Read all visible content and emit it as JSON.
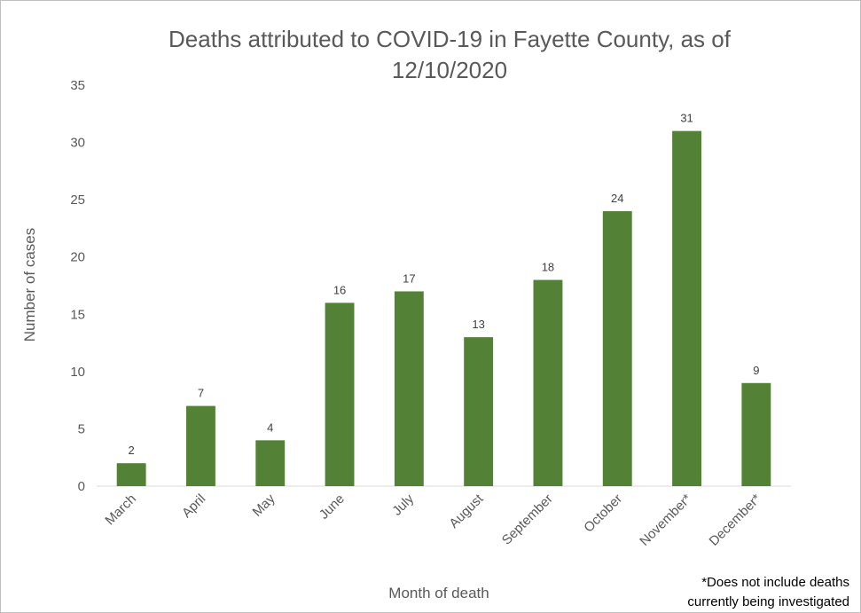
{
  "chart_data": {
    "type": "bar",
    "title": [
      "Deaths attributed to COVID-19 in Fayette County, as of",
      "12/10/2020"
    ],
    "xlabel": "Month of death",
    "ylabel": "Number of cases",
    "categories": [
      "March",
      "April",
      "May",
      "June",
      "July",
      "August",
      "September",
      "October",
      "November*",
      "December*"
    ],
    "values": [
      2,
      7,
      4,
      16,
      17,
      13,
      18,
      24,
      31,
      9
    ],
    "ylim": [
      0,
      35
    ],
    "yticks": [
      0,
      5,
      10,
      15,
      20,
      25,
      30,
      35
    ],
    "grid": false,
    "legend": "none",
    "data_labels": true,
    "bar_color": "#538135",
    "axis_color": "#d9d9d9",
    "text_color": "#595959"
  },
  "footnote": {
    "line1": "*Does not include deaths",
    "line2": "currently being investigated"
  }
}
